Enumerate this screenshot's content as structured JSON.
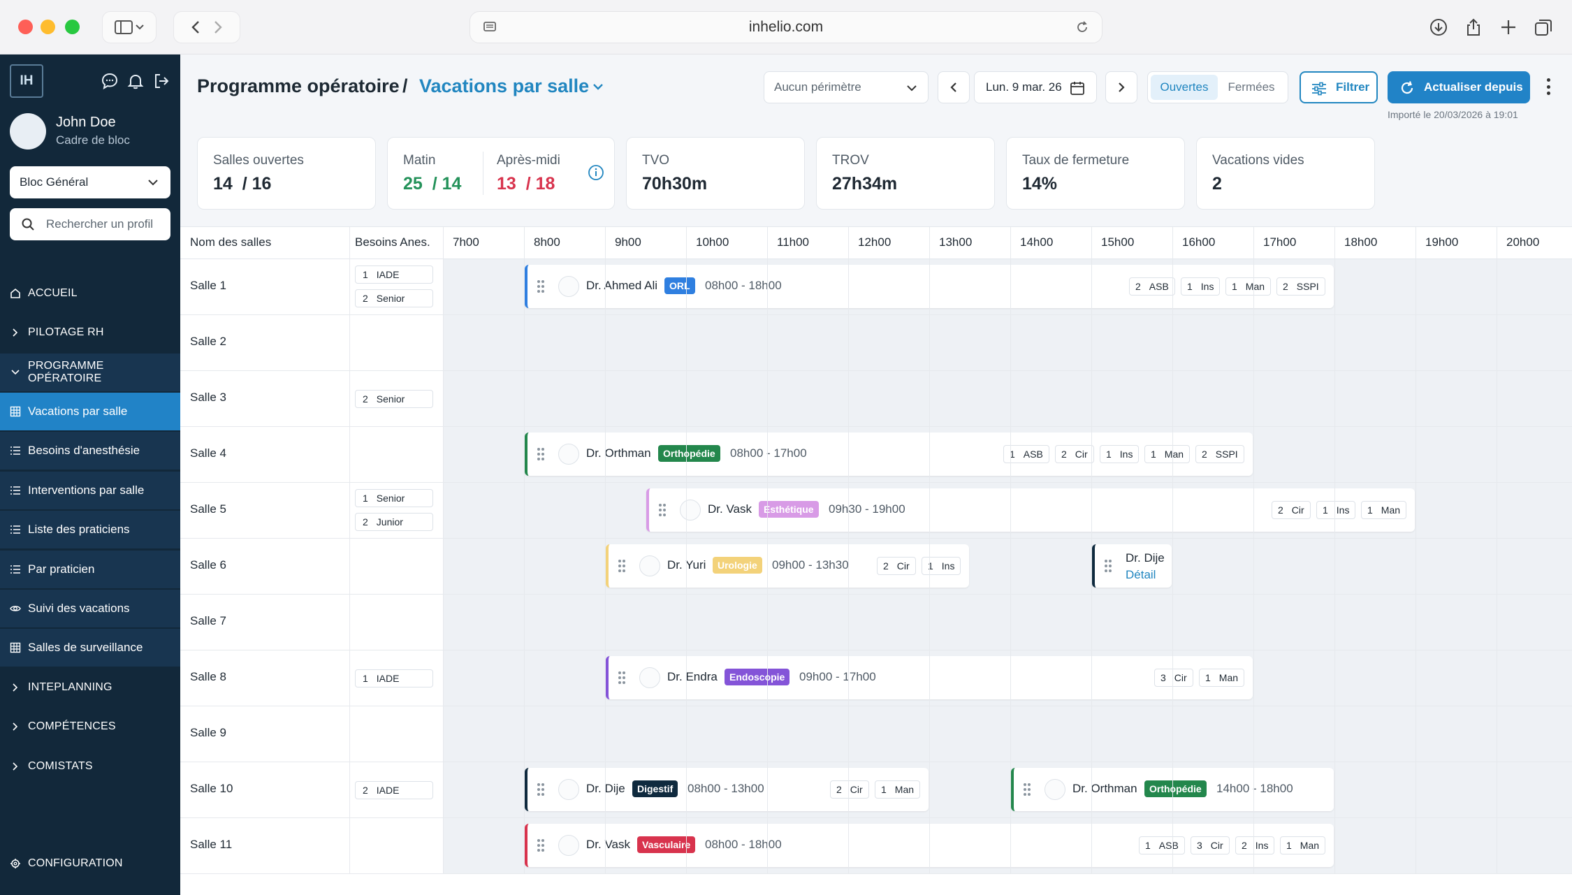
{
  "browser": {
    "url": "inhelio.com"
  },
  "sidebar": {
    "logo": "IH",
    "user": {
      "name": "John Doe",
      "role": "Cadre de bloc"
    },
    "bloc_select": "Bloc Général",
    "search_placeholder": "Rechercher un profil",
    "items": [
      {
        "label": "ACCUEIL"
      },
      {
        "label": "PILOTAGE RH"
      },
      {
        "label": "PROGRAMME OPÉRATOIRE"
      },
      {
        "label": "Vacations par salle"
      },
      {
        "label": "Besoins d'anesthésie"
      },
      {
        "label": "Interventions par salle"
      },
      {
        "label": "Liste des praticiens"
      },
      {
        "label": "Par praticien"
      },
      {
        "label": "Suivi des vacations"
      },
      {
        "label": "Salles de surveillance"
      },
      {
        "label": "INTEPLANNING"
      },
      {
        "label": "COMPÉTENCES"
      },
      {
        "label": "COMISTATS"
      },
      {
        "label": "CONFIGURATION"
      }
    ]
  },
  "header": {
    "title": "Programme opératoire",
    "separator": "/",
    "subtitle": "Vacations par salle",
    "perimeter": "Aucun périmètre",
    "date": "Lun. 9 mar. 26",
    "toggle_open": "Ouvertes",
    "toggle_closed": "Fermées",
    "filter_label": "Filtrer",
    "refresh_label": "Actualiser depuis",
    "imported": "Importé le 20/03/2026 à 19:01"
  },
  "stats": {
    "salles_label": "Salles ouvertes",
    "salles_open": "14",
    "salles_total": "/ 16",
    "matin_label": "Matin",
    "matin_open": "25",
    "matin_total": "/ 14",
    "aprem_label": "Après-midi",
    "aprem_open": "13",
    "aprem_total": "/ 18",
    "tvo_label": "TVO",
    "tvo_value": "70h30m",
    "trov_label": "TROV",
    "trov_value": "27h34m",
    "fermeture_label": "Taux de fermeture",
    "fermeture_value": "14%",
    "vides_label": "Vacations vides",
    "vides_value": "2"
  },
  "grid": {
    "col_room": "Nom des salles",
    "col_needs": "Besoins Anes.",
    "hours": [
      "7h00",
      "8h00",
      "9h00",
      "10h00",
      "11h00",
      "12h00",
      "13h00",
      "14h00",
      "15h00",
      "16h00",
      "17h00",
      "18h00",
      "19h00",
      "20h00"
    ]
  },
  "rooms": [
    {
      "name": "Salle 1",
      "needs": [
        {
          "n": "1",
          "role": "IADE"
        },
        {
          "n": "2",
          "role": "Senior"
        }
      ],
      "vacations": [
        {
          "doctor": "Dr. Ahmed Ali",
          "specialty": "ORL",
          "time": "08h00 - 18h00",
          "color": "#2f7fe0",
          "start": 8,
          "end": 18,
          "staff": [
            {
              "n": "2",
              "role": "ASB"
            },
            {
              "n": "1",
              "role": "Ins"
            },
            {
              "n": "1",
              "role": "Man"
            },
            {
              "n": "2",
              "role": "SSPI"
            }
          ]
        }
      ]
    },
    {
      "name": "Salle 2",
      "needs": [],
      "vacations": []
    },
    {
      "name": "Salle 3",
      "needs": [
        {
          "n": "2",
          "role": "Senior"
        }
      ],
      "vacations": []
    },
    {
      "name": "Salle 4",
      "needs": [],
      "vacations": [
        {
          "doctor": "Dr. Orthman",
          "specialty": "Orthopédie",
          "time": "08h00 - 17h00",
          "color": "#23874c",
          "start": 8,
          "end": 17,
          "staff": [
            {
              "n": "1",
              "role": "ASB"
            },
            {
              "n": "2",
              "role": "Cir"
            },
            {
              "n": "1",
              "role": "Ins"
            },
            {
              "n": "1",
              "role": "Man"
            },
            {
              "n": "2",
              "role": "SSPI"
            }
          ]
        }
      ]
    },
    {
      "name": "Salle 5",
      "needs": [
        {
          "n": "1",
          "role": "Senior"
        },
        {
          "n": "2",
          "role": "Junior"
        }
      ],
      "vacations": [
        {
          "doctor": "Dr. Vask",
          "specialty": "Esthétique",
          "time": "09h30 - 19h00",
          "color": "#d89be6",
          "start": 9.5,
          "end": 19,
          "staff": [
            {
              "n": "2",
              "role": "Cir"
            },
            {
              "n": "1",
              "role": "Ins"
            },
            {
              "n": "1",
              "role": "Man"
            }
          ]
        }
      ]
    },
    {
      "name": "Salle 6",
      "needs": [],
      "vacations": [
        {
          "doctor": "Dr. Yuri",
          "specialty": "Urologie",
          "time": "09h00 - 13h30",
          "color": "#f3d27a",
          "start": 9,
          "end": 13.5,
          "staff": [
            {
              "n": "2",
              "role": "Cir"
            },
            {
              "n": "1",
              "role": "Ins"
            }
          ]
        },
        {
          "doctor": "Dr. Dije",
          "detail": "Détail",
          "color": "#0f2a3e",
          "start": 15,
          "end": 16,
          "staff": []
        }
      ]
    },
    {
      "name": "Salle 7",
      "needs": [],
      "vacations": []
    },
    {
      "name": "Salle 8",
      "needs": [
        {
          "n": "1",
          "role": "IADE"
        }
      ],
      "vacations": [
        {
          "doctor": "Dr. Endra",
          "specialty": "Endoscopie",
          "time": "09h00 - 17h00",
          "color": "#8454d8",
          "start": 9,
          "end": 17,
          "staff": [
            {
              "n": "3",
              "role": "Cir"
            },
            {
              "n": "1",
              "role": "Man"
            }
          ]
        }
      ]
    },
    {
      "name": "Salle 9",
      "needs": [],
      "vacations": []
    },
    {
      "name": "Salle 10",
      "needs": [
        {
          "n": "2",
          "role": "IADE"
        }
      ],
      "vacations": [
        {
          "doctor": "Dr. Dije",
          "specialty": "Digestif",
          "time": "08h00 - 13h00",
          "color": "#0f2a3e",
          "start": 8,
          "end": 13,
          "staff": [
            {
              "n": "2",
              "role": "Cir"
            },
            {
              "n": "1",
              "role": "Man"
            }
          ]
        },
        {
          "doctor": "Dr. Orthman",
          "specialty": "Orthopédie",
          "time": "14h00 - 18h00",
          "color": "#23874c",
          "start": 14,
          "end": 18,
          "staff": []
        }
      ]
    },
    {
      "name": "Salle 11",
      "needs": [],
      "vacations": [
        {
          "doctor": "Dr. Vask",
          "specialty": "Vasculaire",
          "time": "08h00 - 18h00",
          "color": "#d8334d",
          "start": 8,
          "end": 18,
          "staff": [
            {
              "n": "1",
              "role": "ASB"
            },
            {
              "n": "3",
              "role": "Cir"
            },
            {
              "n": "2",
              "role": "Ins"
            },
            {
              "n": "1",
              "role": "Man"
            }
          ]
        }
      ]
    }
  ]
}
